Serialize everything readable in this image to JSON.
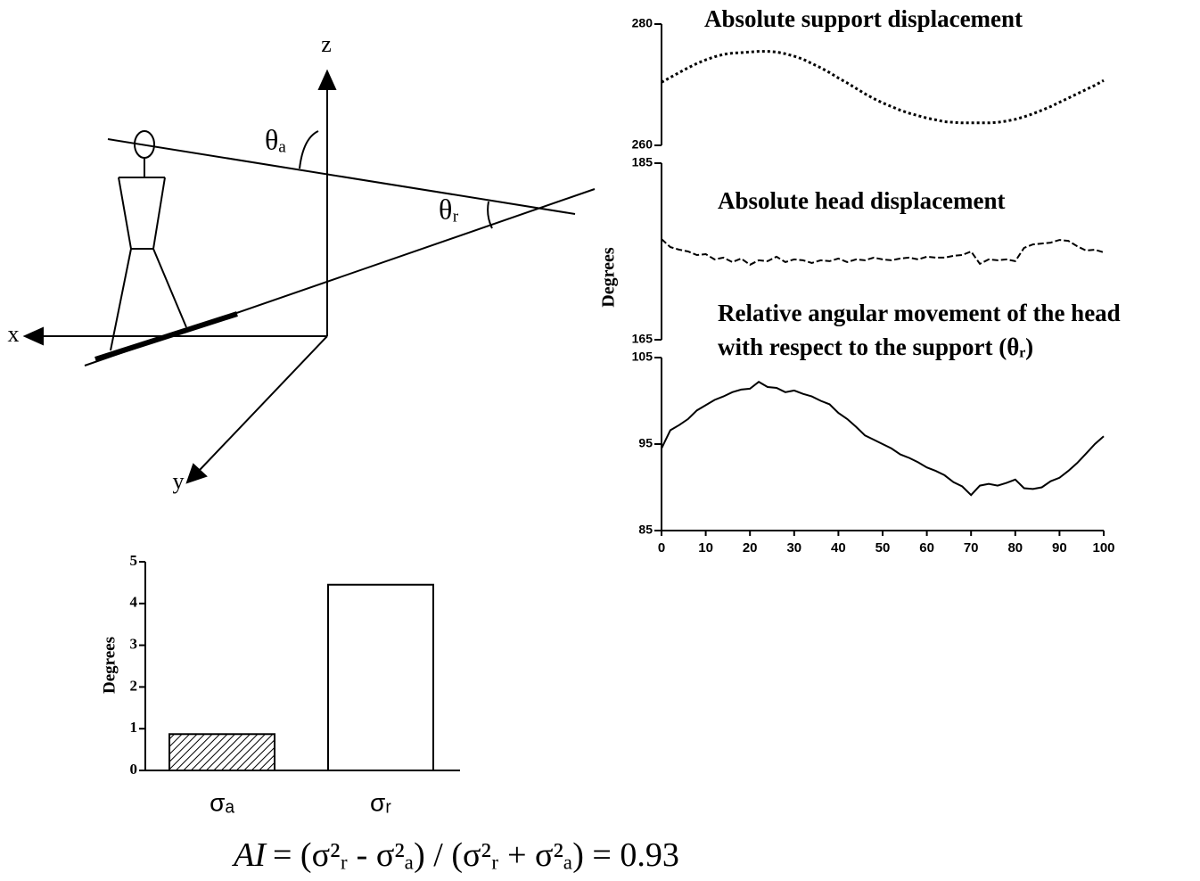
{
  "diagram": {
    "axis_labels": [
      "z",
      "x",
      "y"
    ],
    "angles": [
      "θₐ",
      "θᵣ"
    ]
  },
  "formula": {
    "lhs": "AI",
    "rhs": "= (σ²ᵣ - σ²ₐ) / (σ²ᵣ + σ²ₐ) = 0.93"
  },
  "chart_data": [
    {
      "type": "line",
      "title": "Absolute support displacement",
      "line_style": "dotted",
      "color": "#000000",
      "x": [
        0,
        2,
        4,
        6,
        8,
        10,
        12,
        14,
        16,
        18,
        20,
        22,
        24,
        26,
        28,
        30,
        32,
        34,
        36,
        38,
        40,
        42,
        44,
        46,
        48,
        50,
        52,
        54,
        56,
        58,
        60,
        62,
        64,
        66,
        68,
        70,
        72,
        74,
        76,
        78,
        80,
        82,
        84,
        86,
        88,
        90,
        92,
        94,
        96,
        98,
        100
      ],
      "values": [
        270.4,
        271.2,
        272.0,
        272.8,
        273.5,
        274.1,
        274.6,
        275.0,
        275.2,
        275.3,
        275.4,
        275.5,
        275.5,
        275.4,
        275.1,
        274.7,
        274.2,
        273.5,
        272.8,
        272.0,
        271.1,
        270.3,
        269.4,
        268.5,
        267.7,
        267.0,
        266.4,
        265.8,
        265.3,
        264.9,
        264.5,
        264.2,
        263.9,
        263.8,
        263.7,
        263.7,
        263.7,
        263.7,
        263.8,
        264.0,
        264.3,
        264.7,
        265.2,
        265.8,
        266.4,
        267.1,
        267.8,
        268.5,
        269.2,
        269.9,
        270.7
      ],
      "xlim": [
        0,
        100
      ],
      "ylim": [
        260,
        280
      ],
      "yticks": [
        260,
        280
      ]
    },
    {
      "type": "line",
      "title": "Absolute head displacement",
      "ylabel": "Degrees",
      "line_style": "dashed",
      "color": "#000000",
      "x": [
        0,
        2,
        4,
        6,
        8,
        10,
        12,
        14,
        16,
        18,
        20,
        22,
        24,
        26,
        28,
        30,
        32,
        34,
        36,
        38,
        40,
        42,
        44,
        46,
        48,
        50,
        52,
        54,
        56,
        58,
        60,
        62,
        64,
        66,
        68,
        70,
        72,
        74,
        76,
        78,
        80,
        82,
        84,
        86,
        88,
        90,
        92,
        94,
        96,
        98,
        100
      ],
      "values": [
        176.4,
        175.5,
        175.2,
        175.0,
        174.6,
        174.7,
        174.1,
        174.3,
        173.8,
        174.2,
        173.5,
        174.0,
        173.9,
        174.4,
        173.8,
        174.1,
        174.0,
        173.7,
        174.0,
        173.9,
        174.2,
        173.8,
        174.1,
        174.0,
        174.3,
        174.1,
        174.0,
        174.2,
        174.3,
        174.1,
        174.4,
        174.3,
        174.3,
        174.5,
        174.6,
        175.0,
        173.6,
        174.1,
        174.0,
        174.1,
        173.9,
        175.4,
        175.8,
        175.9,
        176.0,
        176.3,
        176.2,
        175.6,
        175.1,
        175.2,
        174.9
      ],
      "xlim": [
        0,
        100
      ],
      "ylim": [
        165,
        185
      ],
      "yticks": [
        165,
        185
      ]
    },
    {
      "type": "line",
      "title": [
        "Relative angular movement of the head",
        "with respect to the support (θᵣ)"
      ],
      "line_style": "solid",
      "color": "#000000",
      "x": [
        0,
        2,
        4,
        6,
        8,
        10,
        12,
        14,
        16,
        18,
        20,
        22,
        24,
        26,
        28,
        30,
        32,
        34,
        36,
        38,
        40,
        42,
        44,
        46,
        48,
        50,
        52,
        54,
        56,
        58,
        60,
        62,
        64,
        66,
        68,
        70,
        72,
        74,
        76,
        78,
        80,
        82,
        84,
        86,
        88,
        90,
        92,
        94,
        96,
        98,
        100
      ],
      "values": [
        94.5,
        96.6,
        97.2,
        97.9,
        98.9,
        99.5,
        100.1,
        100.5,
        101.0,
        101.3,
        101.4,
        102.2,
        101.6,
        101.5,
        101.0,
        101.2,
        100.8,
        100.5,
        100.0,
        99.6,
        98.6,
        97.9,
        97.0,
        96.0,
        95.5,
        95.0,
        94.5,
        93.8,
        93.4,
        92.9,
        92.3,
        91.9,
        91.4,
        90.6,
        90.1,
        89.1,
        90.2,
        90.4,
        90.2,
        90.5,
        90.9,
        89.9,
        89.8,
        90.0,
        90.7,
        91.1,
        91.9,
        92.8,
        93.9,
        95.0,
        95.9
      ],
      "xlim": [
        0,
        100
      ],
      "ylim": [
        85,
        105
      ],
      "yticks": [
        85,
        95,
        105
      ],
      "xticks": [
        0,
        10,
        20,
        30,
        40,
        50,
        60,
        70,
        80,
        90,
        100
      ]
    },
    {
      "type": "bar",
      "ylabel": "Degrees",
      "categories": [
        "σₐ",
        "σᵣ"
      ],
      "values": [
        0.87,
        4.45
      ],
      "colors": [
        "#ffffff",
        "#ffffff"
      ],
      "hatch": [
        true,
        false
      ],
      "ylim": [
        0,
        5
      ],
      "yticks": [
        0,
        1,
        2,
        3,
        4,
        5
      ]
    }
  ]
}
